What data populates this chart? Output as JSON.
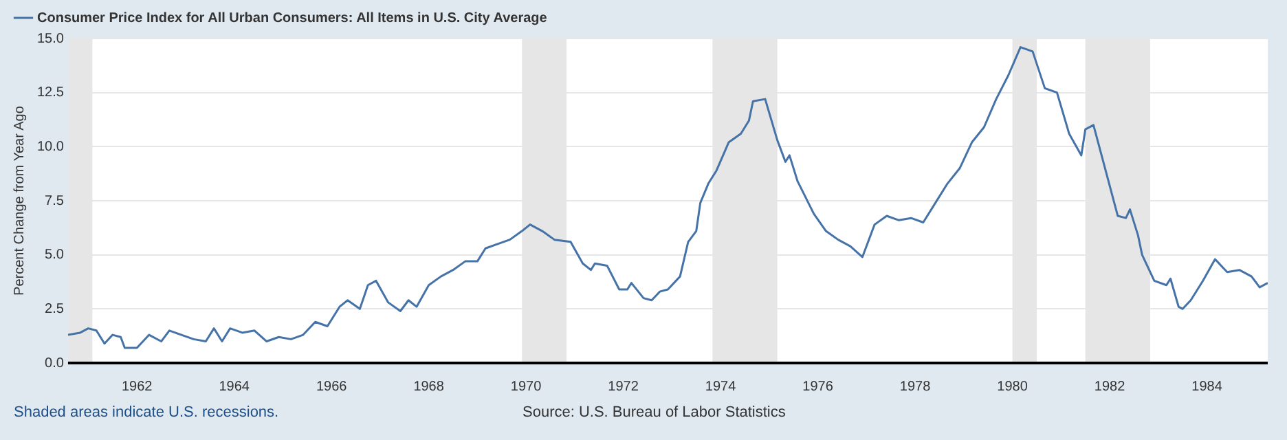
{
  "chart_data": {
    "type": "line",
    "ylabel": "Percent Change from Year Ago",
    "annotations": [
      "Shaded areas indicate U.S. recessions.",
      "Source: U.S. Bureau of Labor Statistics"
    ],
    "series": [
      {
        "name": "Consumer Price Index for All Urban Consumers: All Items in U.S. City Average",
        "color": "#4572a7",
        "x": [
          "1960-08",
          "1960-11",
          "1961-01",
          "1961-03",
          "1961-05",
          "1961-07",
          "1961-09",
          "1961-10",
          "1962-01",
          "1962-04",
          "1962-07",
          "1962-09",
          "1962-12",
          "1963-03",
          "1963-06",
          "1963-08",
          "1963-10",
          "1963-12",
          "1964-03",
          "1964-06",
          "1964-09",
          "1964-12",
          "1965-03",
          "1965-06",
          "1965-09",
          "1965-12",
          "1966-03",
          "1966-05",
          "1966-08",
          "1966-10",
          "1966-12",
          "1967-03",
          "1967-06",
          "1967-08",
          "1967-10",
          "1968-01",
          "1968-04",
          "1968-07",
          "1968-10",
          "1969-01",
          "1969-03",
          "1969-06",
          "1969-09",
          "1969-12",
          "1970-02",
          "1970-05",
          "1970-08",
          "1970-12",
          "1971-03",
          "1971-05",
          "1971-06",
          "1971-09",
          "1971-12",
          "1972-02",
          "1972-03",
          "1972-06",
          "1972-08",
          "1972-10",
          "1972-12",
          "1973-03",
          "1973-05",
          "1973-07",
          "1973-08",
          "1973-10",
          "1973-12",
          "1974-03",
          "1974-06",
          "1974-08",
          "1974-09",
          "1974-12",
          "1975-03",
          "1975-05",
          "1975-06",
          "1975-08",
          "1975-12",
          "1976-03",
          "1976-06",
          "1976-09",
          "1976-12",
          "1977-03",
          "1977-06",
          "1977-09",
          "1977-12",
          "1978-03",
          "1978-06",
          "1978-09",
          "1978-12",
          "1979-03",
          "1979-06",
          "1979-09",
          "1979-12",
          "1980-03",
          "1980-06",
          "1980-09",
          "1980-12",
          "1981-03",
          "1981-06",
          "1981-07",
          "1981-09",
          "1981-12",
          "1982-03",
          "1982-05",
          "1982-06",
          "1982-08",
          "1982-09",
          "1982-12",
          "1983-03",
          "1983-04",
          "1983-06",
          "1983-07",
          "1983-09",
          "1983-12",
          "1984-03",
          "1984-06",
          "1984-09",
          "1984-12",
          "1985-02",
          "1985-04"
        ],
        "values": [
          1.3,
          1.4,
          1.6,
          1.5,
          0.9,
          1.3,
          1.2,
          0.7,
          0.7,
          1.3,
          1.0,
          1.5,
          1.3,
          1.1,
          1.0,
          1.6,
          1.0,
          1.6,
          1.4,
          1.5,
          1.0,
          1.2,
          1.1,
          1.3,
          1.9,
          1.7,
          2.6,
          2.9,
          2.5,
          3.6,
          3.8,
          2.8,
          2.4,
          2.9,
          2.6,
          3.6,
          4.0,
          4.3,
          4.7,
          4.7,
          5.3,
          5.5,
          5.7,
          6.1,
          6.4,
          6.1,
          5.7,
          5.6,
          4.6,
          4.3,
          4.6,
          4.5,
          3.4,
          3.4,
          3.7,
          3.0,
          2.9,
          3.3,
          3.4,
          4.0,
          5.6,
          6.1,
          7.4,
          8.3,
          8.9,
          10.2,
          10.6,
          11.2,
          12.1,
          12.2,
          10.3,
          9.3,
          9.6,
          8.4,
          6.9,
          6.1,
          5.7,
          5.4,
          4.9,
          6.4,
          6.8,
          6.6,
          6.7,
          6.5,
          7.4,
          8.3,
          9.0,
          10.2,
          10.9,
          12.2,
          13.3,
          14.6,
          14.4,
          12.7,
          12.5,
          10.6,
          9.6,
          10.8,
          11.0,
          8.9,
          6.8,
          6.7,
          7.1,
          5.9,
          5.0,
          3.8,
          3.6,
          3.9,
          2.6,
          2.5,
          2.9,
          3.8,
          4.8,
          4.2,
          4.3,
          4.0,
          3.5,
          3.7
        ]
      }
    ],
    "xlim": [
      "1960-08",
      "1985-04"
    ],
    "xticks": [
      "1962",
      "1964",
      "1966",
      "1968",
      "1970",
      "1972",
      "1974",
      "1976",
      "1978",
      "1980",
      "1982",
      "1984"
    ],
    "ylim": [
      0,
      15
    ],
    "yticks": [
      {
        "value": 0,
        "label": "0.0"
      },
      {
        "value": 2.5,
        "label": "2.5"
      },
      {
        "value": 5,
        "label": "5.0"
      },
      {
        "value": 7.5,
        "label": "7.5"
      },
      {
        "value": 10,
        "label": "10.0"
      },
      {
        "value": 12.5,
        "label": "12.5"
      },
      {
        "value": 15,
        "label": "15.0"
      }
    ],
    "bands": [
      {
        "axis": "x",
        "from": "1960-08",
        "to": "1961-02",
        "color": "#e6e6e6"
      },
      {
        "axis": "x",
        "from": "1969-12",
        "to": "1970-11",
        "color": "#e6e6e6"
      },
      {
        "axis": "x",
        "from": "1973-11",
        "to": "1975-03",
        "color": "#e6e6e6"
      },
      {
        "axis": "x",
        "from": "1980-01",
        "to": "1980-07",
        "color": "#e6e6e6"
      },
      {
        "axis": "x",
        "from": "1981-07",
        "to": "1982-11",
        "color": "#e6e6e6"
      }
    ],
    "grid": "y",
    "legend": "top left",
    "marker": "none",
    "line_style": "solid"
  }
}
